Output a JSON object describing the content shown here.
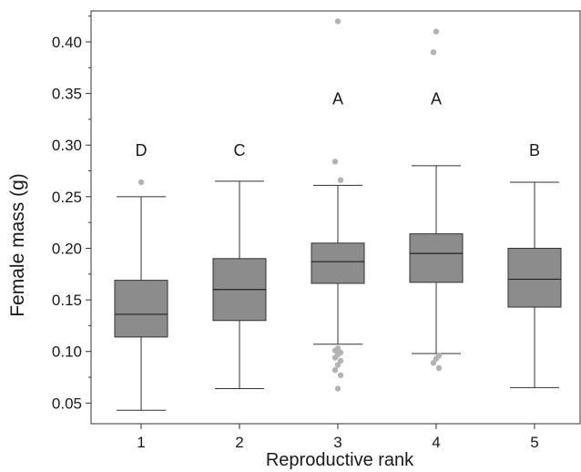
{
  "colors": {
    "box_fill": "#8c8c8c",
    "box_stroke": "#333333",
    "whisker": "#333333",
    "outlier": "#b3b3b3",
    "axis": "#333333",
    "text": "#1a1a1a"
  },
  "chart_data": {
    "type": "boxplot",
    "title": "",
    "xlabel": "Reproductive rank",
    "ylabel": "Female mass (g)",
    "categories": [
      "1",
      "2",
      "3",
      "4",
      "5"
    ],
    "ylim": [
      0.03,
      0.43
    ],
    "yticks": [
      0.05,
      0.1,
      0.15,
      0.2,
      0.25,
      0.3,
      0.35,
      0.4
    ],
    "ytick_labels": [
      "0.05",
      "0.10",
      "0.15",
      "0.20",
      "0.25",
      "0.30",
      "0.35",
      "0.40"
    ],
    "grid": false,
    "boxes": [
      {
        "category": "1",
        "whisker_low": 0.043,
        "q1": 0.114,
        "median": 0.136,
        "q3": 0.169,
        "whisker_high": 0.25,
        "outliers": [
          0.264
        ],
        "group_label": "D"
      },
      {
        "category": "2",
        "whisker_low": 0.064,
        "q1": 0.13,
        "median": 0.16,
        "q3": 0.19,
        "whisker_high": 0.265,
        "outliers": [],
        "group_label": "C"
      },
      {
        "category": "3",
        "whisker_low": 0.107,
        "q1": 0.166,
        "median": 0.187,
        "q3": 0.205,
        "whisker_high": 0.261,
        "outliers": [
          0.42,
          0.284,
          0.266,
          0.103,
          0.101,
          0.099,
          0.097,
          0.094,
          0.091,
          0.087,
          0.082,
          0.077,
          0.064
        ],
        "group_label": "A"
      },
      {
        "category": "4",
        "whisker_low": 0.098,
        "q1": 0.167,
        "median": 0.195,
        "q3": 0.214,
        "whisker_high": 0.28,
        "outliers": [
          0.41,
          0.39,
          0.096,
          0.093,
          0.089,
          0.084
        ],
        "group_label": "A"
      },
      {
        "category": "5",
        "whisker_low": 0.065,
        "q1": 0.143,
        "median": 0.17,
        "q3": 0.2,
        "whisker_high": 0.264,
        "outliers": [],
        "group_label": "B"
      }
    ]
  }
}
